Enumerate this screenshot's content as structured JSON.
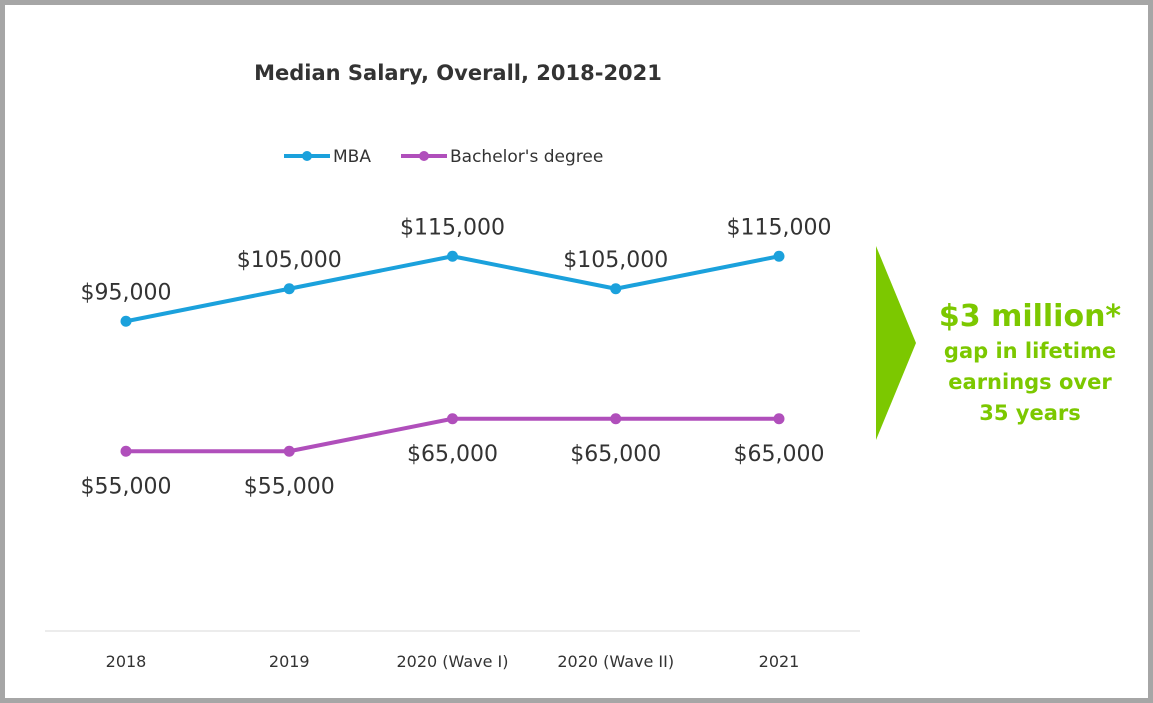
{
  "chart_data": {
    "type": "line",
    "title": "Median Salary, Overall, 2018-2021",
    "categories": [
      "2018",
      "2019",
      "2020 (Wave I)",
      "2020 (Wave II)",
      "2021"
    ],
    "series": [
      {
        "name": "MBA",
        "color": "#1ba1dc",
        "values": [
          95000,
          105000,
          115000,
          105000,
          115000
        ],
        "labels": [
          "$95,000",
          "$105,000",
          "$115,000",
          "$105,000",
          "$115,000"
        ],
        "label_position": "above"
      },
      {
        "name": "Bachelor's degree",
        "color": "#b04fbb",
        "values": [
          55000,
          55000,
          65000,
          65000,
          65000
        ],
        "labels": [
          "$55,000",
          "$55,000",
          "$65,000",
          "$65,000",
          "$65,000"
        ],
        "label_position": "below"
      }
    ],
    "ylim": [
      0,
      140000
    ],
    "grid": false,
    "y_axis_visible": false,
    "legend": "top-center"
  },
  "callout": {
    "headline": "$3 million*",
    "line1": "gap in lifetime",
    "line2": "earnings over",
    "line3": "35 years",
    "color": "#7cc800"
  }
}
